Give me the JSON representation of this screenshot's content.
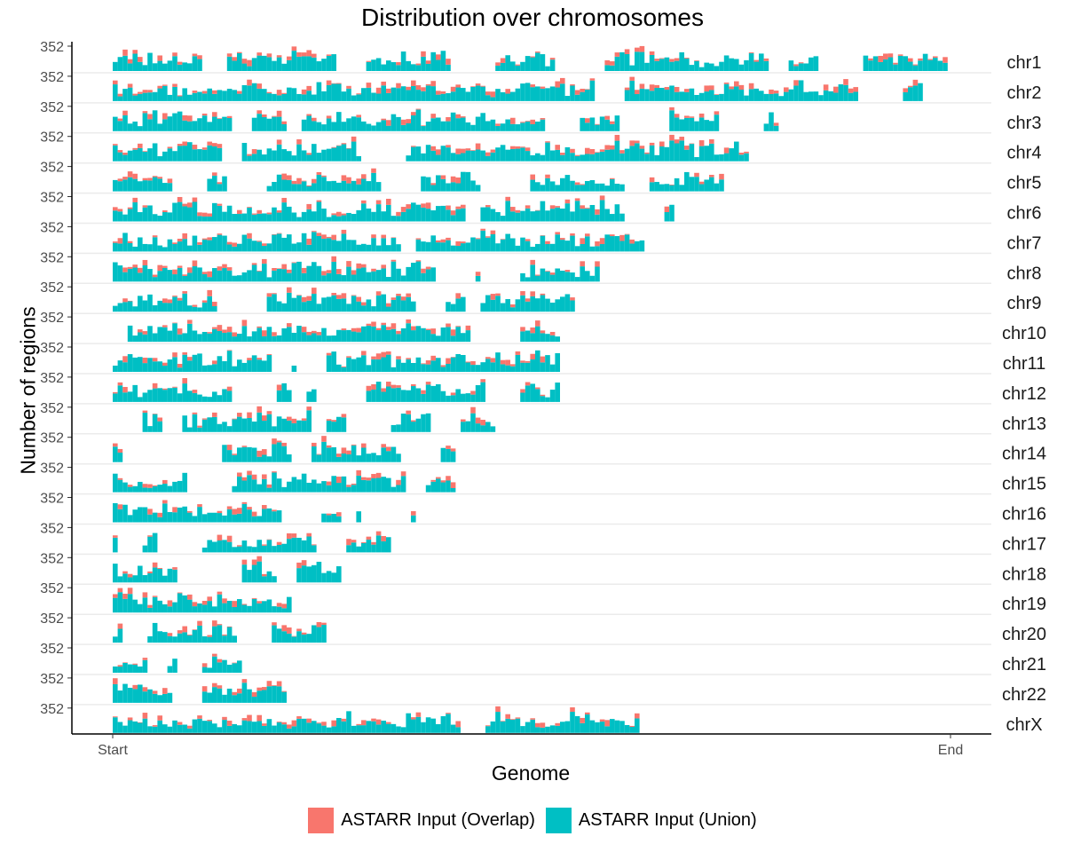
{
  "chart_data": {
    "type": "bar",
    "title": "Distribution over chromosomes",
    "xlabel": "Genome",
    "ylabel": "Number of regions",
    "x_tick_labels": [
      "Start",
      "End"
    ],
    "y_tick_label": "352",
    "facet_labels": [
      "chr1",
      "chr2",
      "chr3",
      "chr4",
      "chr5",
      "chr6",
      "chr7",
      "chr8",
      "chr9",
      "chr10",
      "chr11",
      "chr12",
      "chr13",
      "chr14",
      "chr15",
      "chr16",
      "chr17",
      "chr18",
      "chr19",
      "chr20",
      "chr21",
      "chr22",
      "chrX"
    ],
    "relative_lengths": [
      1.0,
      0.97,
      0.795,
      0.765,
      0.733,
      0.69,
      0.64,
      0.585,
      0.555,
      0.538,
      0.541,
      0.536,
      0.462,
      0.43,
      0.411,
      0.362,
      0.336,
      0.325,
      0.238,
      0.26,
      0.191,
      0.208,
      0.63
    ],
    "series": [
      {
        "name": "ASTARR Input (Overlap)",
        "color": "#F8766D"
      },
      {
        "name": "ASTARR Input (Union)",
        "color": "#00BFC4"
      }
    ],
    "y_max": 352,
    "grid": "horizontal separators",
    "legend": "bottom"
  }
}
